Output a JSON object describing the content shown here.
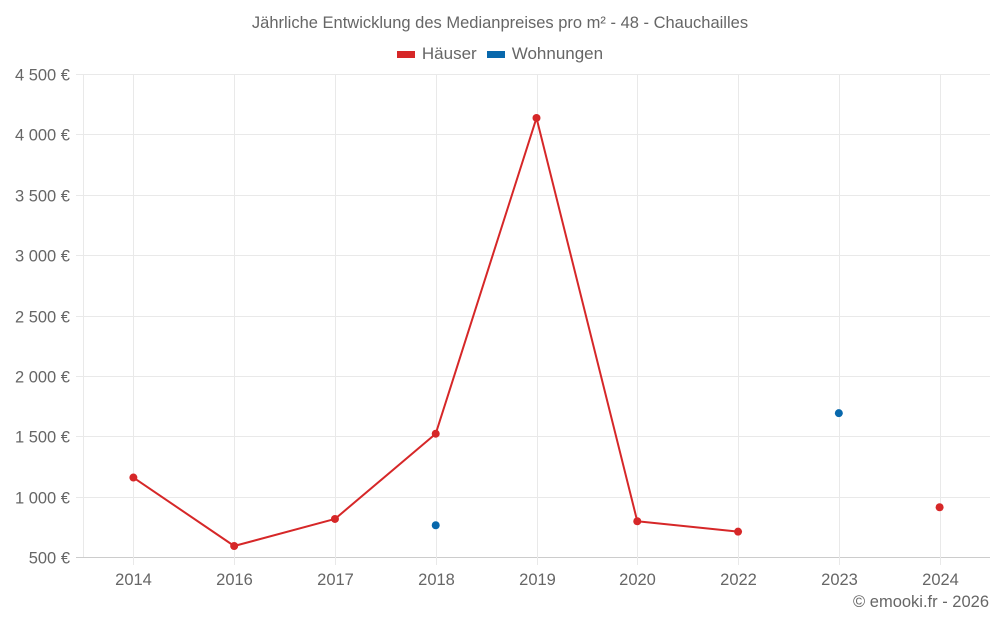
{
  "chart_data": {
    "type": "line",
    "title": "Jährliche Entwicklung des Medianpreises pro m² - 48 - Chauchailles",
    "xlabel": "",
    "ylabel": "",
    "categories": [
      "2014",
      "2016",
      "2017",
      "2018",
      "2019",
      "2020",
      "2022",
      "2023",
      "2024"
    ],
    "series": [
      {
        "name": "Häuser",
        "color": "#d62728",
        "values": [
          1158,
          591,
          815,
          1521,
          4136,
          796,
          710,
          null,
          912
        ]
      },
      {
        "name": "Wohnungen",
        "color": "#0868ac",
        "values": [
          null,
          null,
          null,
          763,
          null,
          null,
          null,
          1691,
          null
        ]
      }
    ],
    "ylim": [
      500,
      4500
    ],
    "yticks": [
      500,
      1000,
      1500,
      2000,
      2500,
      3000,
      3500,
      4000,
      4500
    ],
    "ytick_labels": [
      "500 €",
      "1 000 €",
      "1 500 €",
      "2 000 €",
      "2 500 €",
      "3 000 €",
      "3 500 €",
      "4 000 €",
      "4 500 €"
    ],
    "grid": true,
    "legend_position": "top"
  },
  "header": {
    "title": "Jährliche Entwicklung des Medianpreises pro m² - 48 - Chauchailles"
  },
  "legend": {
    "items": [
      {
        "label": "Häuser",
        "color": "#d62728"
      },
      {
        "label": "Wohnungen",
        "color": "#0868ac"
      }
    ]
  },
  "footer": {
    "credit": "© emooki.fr - 2026"
  }
}
